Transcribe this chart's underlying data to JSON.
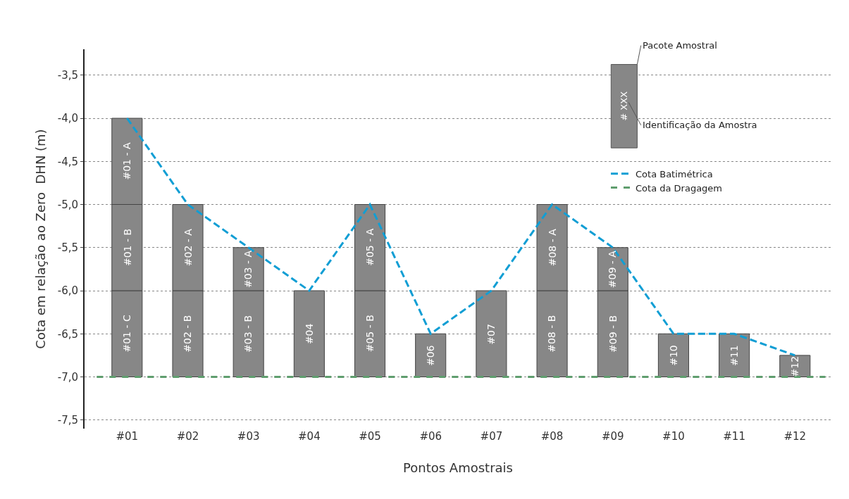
{
  "chart_data": {
    "type": "bar",
    "xlabel": "Pontos Amostrais",
    "ylabel": "Cota em relação ao Zero  DHN (m)",
    "categories": [
      "#01",
      "#02",
      "#03",
      "#04",
      "#05",
      "#06",
      "#07",
      "#08",
      "#09",
      "#10",
      "#11",
      "#12"
    ],
    "series": [
      {
        "color": "#878787",
        "base": [
          -7,
          -7,
          -7,
          -7,
          -7,
          -7,
          -7,
          -7,
          -7,
          -7,
          -7,
          -7
        ],
        "values": [
          1,
          1,
          1,
          1,
          1,
          0.5,
          1,
          1,
          1,
          0.5,
          0.5,
          0.25
        ]
      },
      {
        "color": "#878787",
        "base": [
          -6,
          -6,
          -6,
          null,
          -6,
          null,
          null,
          -6,
          -6,
          null,
          null,
          null
        ],
        "values": [
          1,
          1,
          0.5,
          null,
          1,
          null,
          null,
          1,
          0.5,
          null,
          null,
          null
        ]
      },
      {
        "color": "#878787",
        "base": [
          -5,
          null,
          null,
          null,
          null,
          null,
          null,
          null,
          null,
          null,
          null,
          null
        ],
        "values": [
          1,
          null,
          null,
          null,
          null,
          null,
          null,
          null,
          null,
          null,
          null,
          null
        ]
      },
      {
        "type": "line",
        "name": "Cota Batimétrica",
        "color": "#119ed4",
        "line_style": "dashed",
        "values": [
          -4,
          -5,
          -5.5,
          -6,
          -5,
          -6.5,
          -6,
          -5,
          -5.5,
          -6.5,
          -6.5,
          -6.75
        ]
      }
    ],
    "ref_lines": [
      {
        "axis": "y",
        "value": -7,
        "label": "Cota da Dragagem",
        "color": "#5f9e6e",
        "line_style": "dashed"
      }
    ],
    "annotations": [
      "Pacote Amostral",
      "Identificação da Amostra",
      "# XXX",
      "#01 - A",
      "#01 - B",
      "#01 - C",
      "#02 - A",
      "#02 - B",
      "#03 - A",
      "#03 - B",
      "#04",
      "#05 - A",
      "#05 - B",
      "#06",
      "#07",
      "#08 - A",
      "#08 - B",
      "#09 - A",
      "#09 - B",
      "#10",
      "#11",
      "#12"
    ],
    "ylim": [
      -7.6,
      -3.2
    ],
    "yticks": [
      {
        "value": -3.5,
        "label": "-3,5"
      },
      {
        "value": -4,
        "label": "-4,0"
      },
      {
        "value": -4.5,
        "label": "-4,5"
      },
      {
        "value": -5,
        "label": "-5,0"
      },
      {
        "value": -5.5,
        "label": "-5,5"
      },
      {
        "value": -6,
        "label": "-6,0"
      },
      {
        "value": -6.5,
        "label": "-6,5"
      },
      {
        "value": -7,
        "label": "-7,0"
      },
      {
        "value": -7.5,
        "label": "-7,5"
      }
    ],
    "grid": "y",
    "legend": "top right"
  }
}
